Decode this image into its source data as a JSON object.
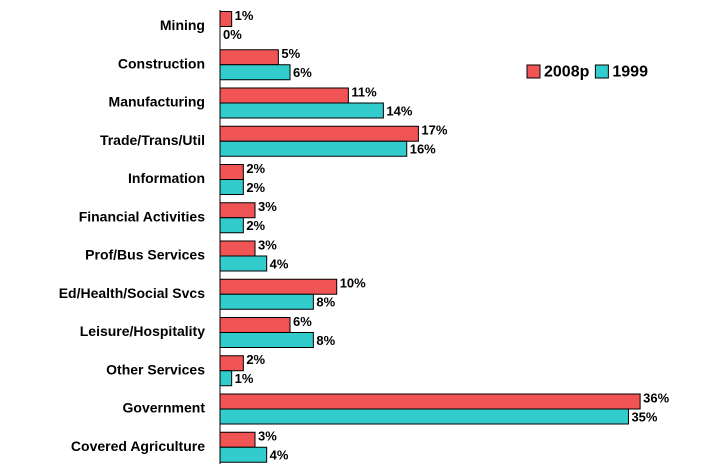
{
  "chart_data": {
    "type": "bar",
    "orientation": "horizontal",
    "categories": [
      "Mining",
      "Construction",
      "Manufacturing",
      "Trade/Trans/Util",
      "Information",
      "Financial Activities",
      "Prof/Bus Services",
      "Ed/Health/Social Svcs",
      "Leisure/Hospitality",
      "Other Services",
      "Government",
      "Covered Agriculture"
    ],
    "series": [
      {
        "name": "2008p",
        "color": "#f05454",
        "values": [
          1,
          5,
          11,
          17,
          2,
          3,
          3,
          10,
          6,
          2,
          36,
          3
        ],
        "value_labels": [
          "1%",
          "5%",
          "11%",
          "17%",
          "2%",
          "3%",
          "3%",
          "10%",
          "6%",
          "2%",
          "36%",
          "3%"
        ]
      },
      {
        "name": "1999",
        "color": "#33cccc",
        "values": [
          0,
          6,
          14,
          16,
          2,
          2,
          4,
          8,
          8,
          1,
          35,
          4
        ],
        "value_labels": [
          "0%",
          "6%",
          "14%",
          "16%",
          "2%",
          "2%",
          "4%",
          "8%",
          "8%",
          "1%",
          "35%",
          "4%"
        ]
      }
    ],
    "legend": "top-right"
  }
}
